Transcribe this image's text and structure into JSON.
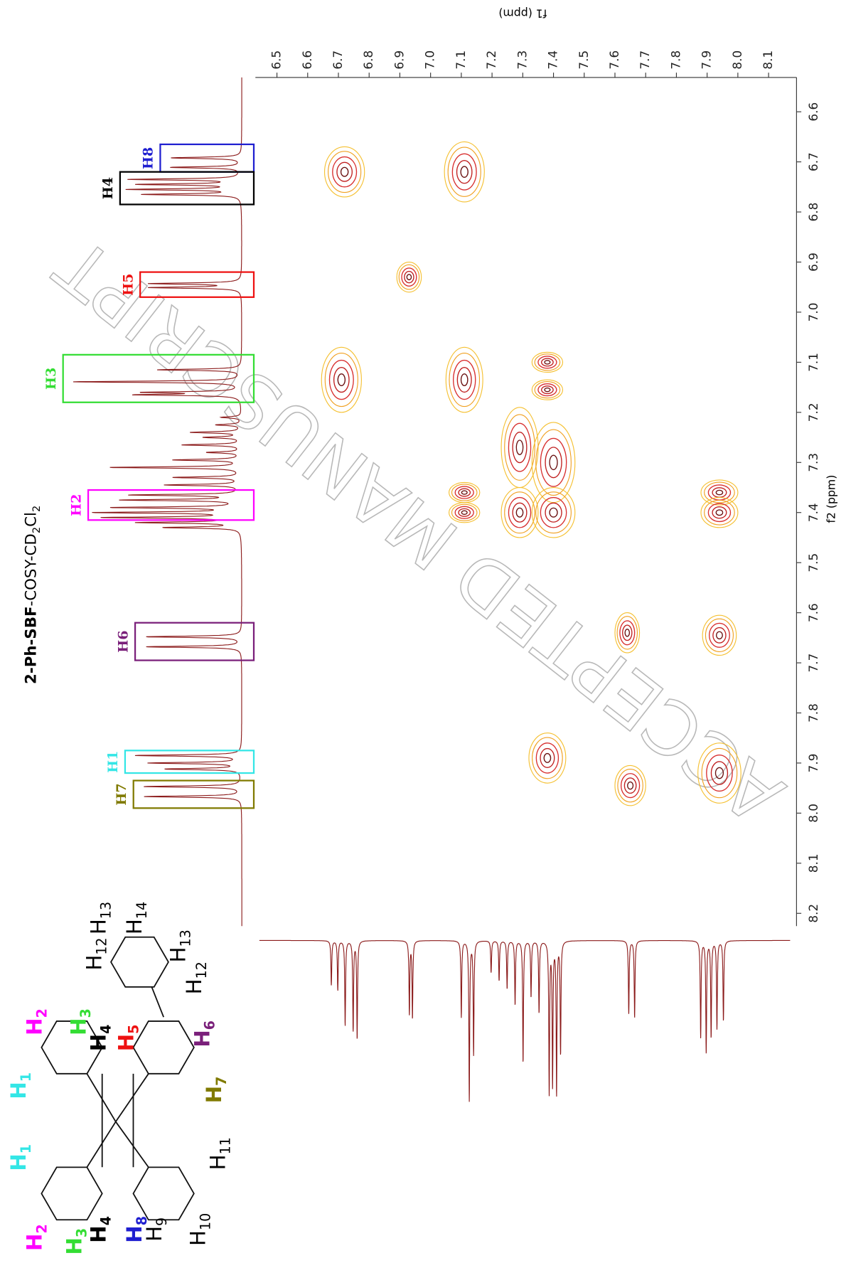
{
  "chart_data": {
    "type": "cosy",
    "title": [
      "2-Ph-SBF",
      "-COSY-CD",
      "2",
      "Cl",
      "2"
    ],
    "xlabel": "f1 (ppm)",
    "ylabel": "f2 (ppm)",
    "xlim": [
      6.5,
      8.1
    ],
    "xticks": [
      6.5,
      6.6,
      6.7,
      6.8,
      6.9,
      {
        "value": 7,
        "label": "7.0"
      },
      7.1,
      7.2,
      7.3,
      7.4,
      7.5,
      7.6,
      7.7,
      7.8,
      7.9,
      {
        "value": 8,
        "label": "8.0"
      },
      8.1
    ],
    "ylim": [
      6.6,
      8.2
    ],
    "yticks": [
      6.6,
      6.7,
      6.8,
      6.9,
      {
        "value": 7,
        "label": "7.0"
      },
      7.1,
      7.2,
      7.3,
      7.4,
      7.5,
      7.6,
      7.7,
      7.8,
      7.9,
      {
        "value": 8,
        "label": "8.0"
      },
      8.1,
      8.2
    ],
    "cross_peaks": [
      {
        "f1": 6.72,
        "f2": 6.72,
        "w1": 0.065,
        "w2": 0.05
      },
      {
        "f1": 7.11,
        "f2": 6.72,
        "w1": 0.065,
        "w2": 0.06
      },
      {
        "f1": 6.93,
        "f2": 6.93,
        "w1": 0.04,
        "w2": 0.03
      },
      {
        "f1": 6.71,
        "f2": 7.135,
        "w1": 0.065,
        "w2": 0.065
      },
      {
        "f1": 7.11,
        "f2": 7.135,
        "w1": 0.06,
        "w2": 0.065
      },
      {
        "f1": 7.38,
        "f2": 7.1,
        "w1": 0.05,
        "w2": 0.02
      },
      {
        "f1": 7.38,
        "f2": 7.155,
        "w1": 0.05,
        "w2": 0.02
      },
      {
        "f1": 7.29,
        "f2": 7.27,
        "w1": 0.06,
        "w2": 0.08
      },
      {
        "f1": 7.4,
        "f2": 7.3,
        "w1": 0.07,
        "w2": 0.08
      },
      {
        "f1": 7.29,
        "f2": 7.4,
        "w1": 0.06,
        "w2": 0.05
      },
      {
        "f1": 7.4,
        "f2": 7.4,
        "w1": 0.07,
        "w2": 0.05
      },
      {
        "f1": 7.11,
        "f2": 7.36,
        "w1": 0.05,
        "w2": 0.02
      },
      {
        "f1": 7.11,
        "f2": 7.4,
        "w1": 0.05,
        "w2": 0.02
      },
      {
        "f1": 7.94,
        "f2": 7.36,
        "w1": 0.06,
        "w2": 0.025
      },
      {
        "f1": 7.94,
        "f2": 7.4,
        "w1": 0.06,
        "w2": 0.03
      },
      {
        "f1": 7.64,
        "f2": 7.64,
        "w1": 0.04,
        "w2": 0.04
      },
      {
        "f1": 7.94,
        "f2": 7.645,
        "w1": 0.055,
        "w2": 0.04
      },
      {
        "f1": 7.38,
        "f2": 7.89,
        "w1": 0.06,
        "w2": 0.05
      },
      {
        "f1": 7.65,
        "f2": 7.945,
        "w1": 0.05,
        "w2": 0.04
      },
      {
        "f1": 7.94,
        "f2": 7.92,
        "w1": 0.07,
        "w2": 0.06
      }
    ],
    "f2_projection": {
      "color": "#8b1a1a",
      "peaks": [
        {
          "ppm": 6.692,
          "intensity": 42
        },
        {
          "ppm": 6.711,
          "intensity": 42
        },
        {
          "ppm": 6.735,
          "intensity": 66
        },
        {
          "ppm": 6.745,
          "intensity": 60
        },
        {
          "ppm": 6.755,
          "intensity": 66
        },
        {
          "ppm": 6.765,
          "intensity": 58
        },
        {
          "ppm": 6.943,
          "intensity": 54
        },
        {
          "ppm": 6.951,
          "intensity": 54
        },
        {
          "ppm": 7.115,
          "intensity": 50
        },
        {
          "ppm": 7.139,
          "intensity": 100
        },
        {
          "ppm": 7.16,
          "intensity": 55
        },
        {
          "ppm": 7.165,
          "intensity": 60
        },
        {
          "ppm": 7.21,
          "intensity": 12
        },
        {
          "ppm": 7.225,
          "intensity": 15
        },
        {
          "ppm": 7.24,
          "intensity": 30
        },
        {
          "ppm": 7.25,
          "intensity": 22
        },
        {
          "ppm": 7.265,
          "intensity": 35
        },
        {
          "ppm": 7.28,
          "intensity": 20
        },
        {
          "ppm": 7.295,
          "intensity": 40
        },
        {
          "ppm": 7.31,
          "intensity": 78
        },
        {
          "ppm": 7.33,
          "intensity": 40
        },
        {
          "ppm": 7.345,
          "intensity": 45
        },
        {
          "ppm": 7.365,
          "intensity": 65
        },
        {
          "ppm": 7.375,
          "intensity": 70
        },
        {
          "ppm": 7.39,
          "intensity": 75
        },
        {
          "ppm": 7.4,
          "intensity": 85
        },
        {
          "ppm": 7.41,
          "intensity": 80
        },
        {
          "ppm": 7.42,
          "intensity": 60
        },
        {
          "ppm": 7.43,
          "intensity": 45
        },
        {
          "ppm": 7.648,
          "intensity": 57
        },
        {
          "ppm": 7.668,
          "intensity": 57
        },
        {
          "ppm": 7.885,
          "intensity": 63
        },
        {
          "ppm": 7.9,
          "intensity": 55
        },
        {
          "ppm": 7.912,
          "intensity": 45
        },
        {
          "ppm": 7.947,
          "intensity": 58
        },
        {
          "ppm": 7.967,
          "intensity": 58
        }
      ]
    },
    "f1_projection": {
      "color": "#8b1a1a",
      "peaks": [
        {
          "ppm": 6.677,
          "intensity": 28
        },
        {
          "ppm": 6.698,
          "intensity": 31
        },
        {
          "ppm": 6.722,
          "intensity": 53
        },
        {
          "ppm": 6.748,
          "intensity": 56
        },
        {
          "ppm": 6.761,
          "intensity": 61
        },
        {
          "ppm": 6.931,
          "intensity": 46
        },
        {
          "ppm": 6.941,
          "intensity": 48
        },
        {
          "ppm": 7.1,
          "intensity": 48
        },
        {
          "ppm": 7.126,
          "intensity": 100
        },
        {
          "ppm": 7.14,
          "intensity": 71
        },
        {
          "ppm": 7.197,
          "intensity": 20
        },
        {
          "ppm": 7.223,
          "intensity": 25
        },
        {
          "ppm": 7.249,
          "intensity": 30
        },
        {
          "ppm": 7.275,
          "intensity": 40
        },
        {
          "ppm": 7.301,
          "intensity": 76
        },
        {
          "ppm": 7.327,
          "intensity": 35
        },
        {
          "ppm": 7.353,
          "intensity": 45
        },
        {
          "ppm": 7.386,
          "intensity": 95
        },
        {
          "ppm": 7.397,
          "intensity": 90
        },
        {
          "ppm": 7.41,
          "intensity": 95
        },
        {
          "ppm": 7.423,
          "intensity": 70
        },
        {
          "ppm": 7.645,
          "intensity": 46
        },
        {
          "ppm": 7.664,
          "intensity": 48
        },
        {
          "ppm": 7.879,
          "intensity": 61
        },
        {
          "ppm": 7.897,
          "intensity": 70
        },
        {
          "ppm": 7.913,
          "intensity": 60
        },
        {
          "ppm": 7.932,
          "intensity": 55
        },
        {
          "ppm": 7.953,
          "intensity": 50
        }
      ]
    },
    "assignments": [
      {
        "label": "H8",
        "color": "#1f1fd0",
        "f2": [
          6.665,
          6.72
        ]
      },
      {
        "label": "H4",
        "color": "#000000",
        "f2": [
          6.72,
          6.785
        ]
      },
      {
        "label": "H5",
        "color": "#ee1111",
        "f2": [
          6.92,
          6.97
        ]
      },
      {
        "label": "H3",
        "color": "#33dd33",
        "f2": [
          7.085,
          7.18
        ]
      },
      {
        "label": "H2",
        "color": "#ff00ff",
        "f2": [
          7.355,
          7.415
        ]
      },
      {
        "label": "H6",
        "color": "#7a1f7a",
        "f2": [
          7.62,
          7.695
        ]
      },
      {
        "label": "H1",
        "color": "#33e6e6",
        "f2": [
          7.875,
          7.92
        ]
      },
      {
        "label": "H7",
        "color": "#807a00",
        "f2": [
          7.935,
          7.99
        ]
      }
    ],
    "watermark": "ACCEPTED MANUSCRIPT"
  },
  "structure": {
    "labels": [
      {
        "symbol": "H",
        "sub": "2",
        "color": "#ff00ff"
      },
      {
        "symbol": "H",
        "sub": "1",
        "color": "#33e6e6"
      },
      {
        "symbol": "H",
        "sub": "1",
        "color": "#33e6e6"
      },
      {
        "symbol": "H",
        "sub": "2",
        "color": "#ff00ff"
      },
      {
        "symbol": "H",
        "sub": "3",
        "color": "#33dd33"
      },
      {
        "symbol": "H",
        "sub": "4",
        "color": "#000000"
      },
      {
        "symbol": "H",
        "sub": "8",
        "color": "#1f1fd0"
      },
      {
        "symbol": "H",
        "sub": "9",
        "color": "#000000"
      },
      {
        "symbol": "H",
        "sub": "10",
        "color": "#000000"
      },
      {
        "symbol": "H",
        "sub": "11",
        "color": "#000000"
      },
      {
        "symbol": "H",
        "sub": "7",
        "color": "#807a00"
      },
      {
        "symbol": "H",
        "sub": "6",
        "color": "#7a1f7a"
      },
      {
        "symbol": "H",
        "sub": "5",
        "color": "#ee1111"
      },
      {
        "symbol": "H",
        "sub": "4",
        "color": "#000000"
      },
      {
        "symbol": "H",
        "sub": "3",
        "color": "#33dd33"
      },
      {
        "symbol": "H",
        "sub": "12",
        "color": "#000000"
      },
      {
        "symbol": "H",
        "sub": "13",
        "color": "#000000"
      },
      {
        "symbol": "H",
        "sub": "14",
        "color": "#000000"
      },
      {
        "symbol": "H",
        "sub": "13",
        "color": "#000000"
      },
      {
        "symbol": "H",
        "sub": "12",
        "color": "#000000"
      }
    ]
  }
}
